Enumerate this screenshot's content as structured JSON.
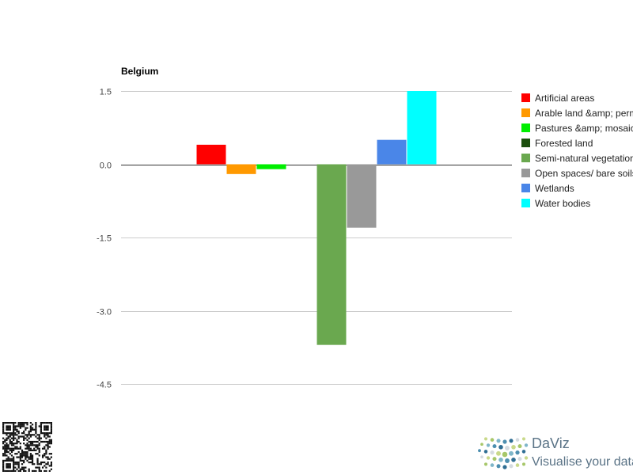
{
  "chart_data": {
    "type": "bar",
    "title": "Belgium",
    "xlabel": "",
    "ylabel": "",
    "categories": [
      ""
    ],
    "ylim": [
      -4.5,
      1.5
    ],
    "yticks": [
      1.5,
      0.0,
      -1.5,
      -3.0,
      -4.5
    ],
    "ytick_labels": [
      "1.5",
      "0.0",
      "-1.5",
      "-3.0",
      "-4.5"
    ],
    "grid": true,
    "legend_position": "right",
    "series": [
      {
        "name": "Artificial areas",
        "color": "#ff0000",
        "values": [
          0.4
        ]
      },
      {
        "name": "Arable land &amp; permanent crops",
        "color": "#ff9900",
        "values": [
          -0.2
        ]
      },
      {
        "name": "Pastures &amp; mosaic farmland",
        "color": "#00ee00",
        "values": [
          -0.1
        ]
      },
      {
        "name": "Forested land",
        "color": "#1b4f0e",
        "values": [
          0.0
        ]
      },
      {
        "name": "Semi-natural vegetation",
        "color": "#6aa84f",
        "values": [
          -3.7
        ]
      },
      {
        "name": "Open spaces/ bare soils",
        "color": "#999999",
        "values": [
          -1.3
        ]
      },
      {
        "name": "Wetlands",
        "color": "#4a86e8",
        "values": [
          0.5
        ]
      },
      {
        "name": "Water bodies",
        "color": "#00ffff",
        "values": [
          1.5
        ]
      }
    ]
  },
  "branding": {
    "name": "DaViz",
    "tagline": "Visualise your data"
  }
}
